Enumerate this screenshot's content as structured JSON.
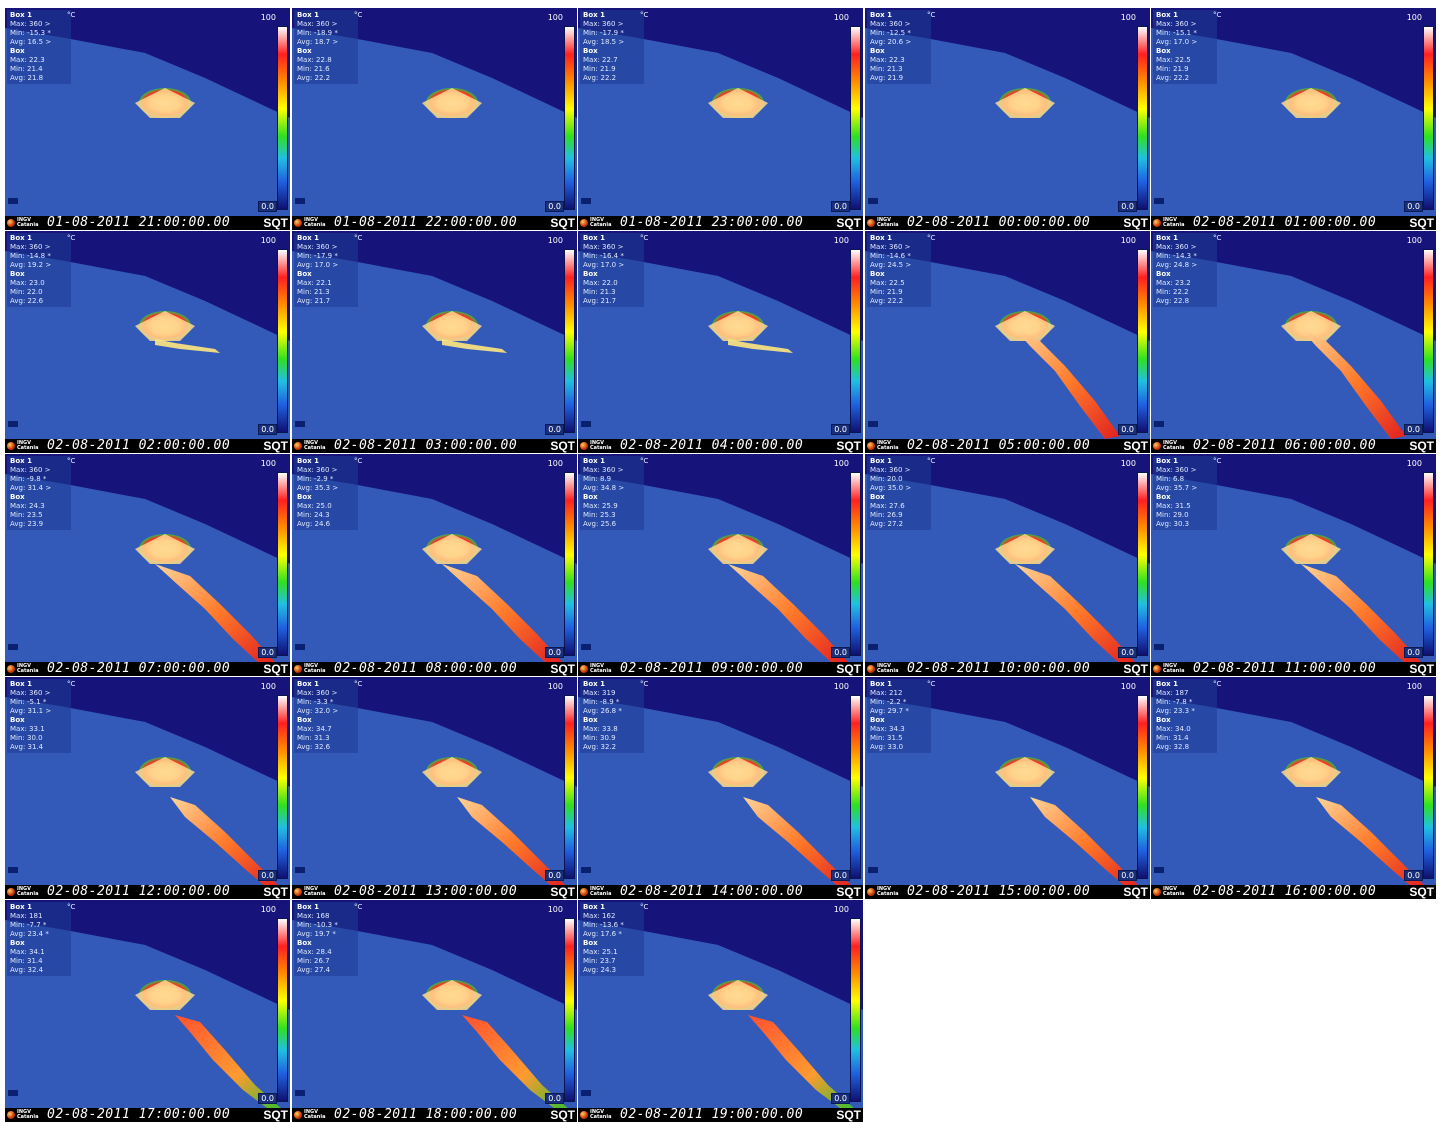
{
  "unit_label": "°C",
  "scale": {
    "max": "100",
    "min": "0.0"
  },
  "logo_text": [
    "INGV",
    "Catania"
  ],
  "station": "SQT",
  "box_header": "Box 1",
  "box2_header": "Box",
  "frames": [
    {
      "time": "01-08-2011 21:00:00.00",
      "max": "360 >",
      "min": "-15.3 *",
      "avg": "16.5 >",
      "b2max": "22.3",
      "b2min": "21.4",
      "b2avg": "21.8",
      "stage": 0
    },
    {
      "time": "01-08-2011 22:00:00.00",
      "max": "360 >",
      "min": "-18.9 *",
      "avg": "18.7 >",
      "b2max": "22.8",
      "b2min": "21.6",
      "b2avg": "22.2",
      "stage": 0
    },
    {
      "time": "01-08-2011 23:00:00.00",
      "max": "360 >",
      "min": "-17.9 *",
      "avg": "18.5 >",
      "b2max": "22.7",
      "b2min": "21.9",
      "b2avg": "22.2",
      "stage": 0
    },
    {
      "time": "02-08-2011 00:00:00.00",
      "max": "360 >",
      "min": "-12.5 *",
      "avg": "20.6 >",
      "b2max": "22.3",
      "b2min": "21.3",
      "b2avg": "21.9",
      "stage": 0
    },
    {
      "time": "02-08-2011 01:00:00.00",
      "max": "360 >",
      "min": "-15.1 *",
      "avg": "17.0 >",
      "b2max": "22.5",
      "b2min": "21.9",
      "b2avg": "22.2",
      "stage": 0
    },
    {
      "time": "02-08-2011 02:00:00.00",
      "max": "360 >",
      "min": "-14.8 *",
      "avg": "19.2 >",
      "b2max": "23.0",
      "b2min": "22.0",
      "b2avg": "22.6",
      "stage": 1
    },
    {
      "time": "02-08-2011 03:00:00.00",
      "max": "360 >",
      "min": "-17.9 *",
      "avg": "17.0 >",
      "b2max": "22.1",
      "b2min": "21.3",
      "b2avg": "21.7",
      "stage": 1
    },
    {
      "time": "02-08-2011 04:00:00.00",
      "max": "360 >",
      "min": "-16.4 *",
      "avg": "17.0 >",
      "b2max": "22.0",
      "b2min": "21.3",
      "b2avg": "21.7",
      "stage": 1
    },
    {
      "time": "02-08-2011 05:00:00.00",
      "max": "360 >",
      "min": "-14.6 *",
      "avg": "24.5 >",
      "b2max": "22.5",
      "b2min": "21.9",
      "b2avg": "22.2",
      "stage": 2
    },
    {
      "time": "02-08-2011 06:00:00.00",
      "max": "360 >",
      "min": "-14.3 *",
      "avg": "24.8 >",
      "b2max": "23.2",
      "b2min": "22.2",
      "b2avg": "22.8",
      "stage": 2
    },
    {
      "time": "02-08-2011 07:00:00.00",
      "max": "360 >",
      "min": "-9.8 *",
      "avg": "31.4 >",
      "b2max": "24.3",
      "b2min": "23.5",
      "b2avg": "23.9",
      "stage": 3
    },
    {
      "time": "02-08-2011 08:00:00.00",
      "max": "360 >",
      "min": "-2.9 *",
      "avg": "35.3 >",
      "b2max": "25.0",
      "b2min": "24.3",
      "b2avg": "24.6",
      "stage": 3
    },
    {
      "time": "02-08-2011 09:00:00.00",
      "max": "360 >",
      "min": "8.9",
      "avg": "34.8 >",
      "b2max": "25.9",
      "b2min": "25.3",
      "b2avg": "25.6",
      "stage": 3
    },
    {
      "time": "02-08-2011 10:00:00.00",
      "max": "360 >",
      "min": "20.0",
      "avg": "35.0 >",
      "b2max": "27.6",
      "b2min": "26.9",
      "b2avg": "27.2",
      "stage": 3
    },
    {
      "time": "02-08-2011 11:00:00.00",
      "max": "360 >",
      "min": "6.8",
      "avg": "35.7 >",
      "b2max": "31.5",
      "b2min": "29.0",
      "b2avg": "30.3",
      "stage": 3
    },
    {
      "time": "02-08-2011 12:00:00.00",
      "max": "360 >",
      "min": "-5.1 *",
      "avg": "31.1 >",
      "b2max": "33.1",
      "b2min": "30.0",
      "b2avg": "31.4",
      "stage": 4
    },
    {
      "time": "02-08-2011 13:00:00.00",
      "max": "360 >",
      "min": "-3.3 *",
      "avg": "32.0 >",
      "b2max": "34.7",
      "b2min": "31.3",
      "b2avg": "32.6",
      "stage": 4
    },
    {
      "time": "02-08-2011 14:00:00.00",
      "max": "319",
      "min": "-8.9 *",
      "avg": "26.8 *",
      "b2max": "33.8",
      "b2min": "30.9",
      "b2avg": "32.2",
      "stage": 4
    },
    {
      "time": "02-08-2011 15:00:00.00",
      "max": "212",
      "min": "-2.2 *",
      "avg": "29.7 *",
      "b2max": "34.3",
      "b2min": "31.5",
      "b2avg": "33.0",
      "stage": 4
    },
    {
      "time": "02-08-2011 16:00:00.00",
      "max": "187",
      "min": "-7.8 *",
      "avg": "23.3 *",
      "b2max": "34.0",
      "b2min": "31.4",
      "b2avg": "32.8",
      "stage": 4
    },
    {
      "time": "02-08-2011 17:00:00.00",
      "max": "181",
      "min": "-7.7 *",
      "avg": "23.4 *",
      "b2max": "34.1",
      "b2min": "31.4",
      "b2avg": "32.4",
      "stage": 5
    },
    {
      "time": "02-08-2011 18:00:00.00",
      "max": "168",
      "min": "-10.3 *",
      "avg": "19.7 *",
      "b2max": "28.4",
      "b2min": "26.7",
      "b2avg": "27.4",
      "stage": 5
    },
    {
      "time": "02-08-2011 19:00:00.00",
      "max": "162",
      "min": "-13.6 *",
      "avg": "17.6 *",
      "b2max": "25.1",
      "b2min": "23.7",
      "b2avg": "24.3",
      "stage": 5
    }
  ],
  "labels": {
    "max": "Max:",
    "min": "Min:",
    "avg": "Avg:"
  }
}
